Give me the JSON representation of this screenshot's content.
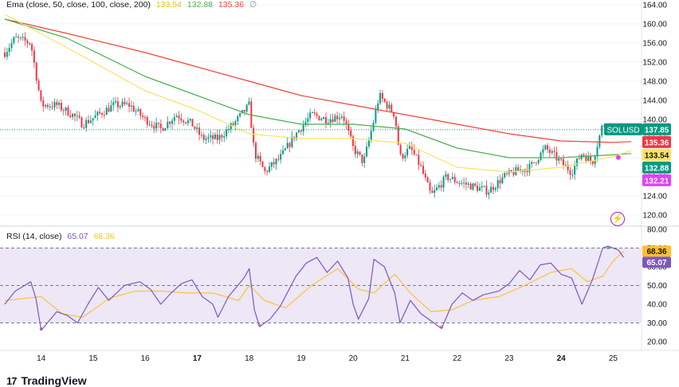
{
  "ema_legend": {
    "title": "Ema (close, 50, close, 100, close, 200)",
    "v1": "133.54",
    "v2": "132.88",
    "v3": "135.36",
    "v4": "∅"
  },
  "rsi_legend": {
    "title": "RSI (14, close)",
    "v1": "65.07",
    "v2": "68.36"
  },
  "footer": {
    "logo_text": "TradingView"
  },
  "colors": {
    "up": "#089981",
    "down": "#f23645",
    "ema50": "#f7e462",
    "ema100": "#4caf50",
    "ema200": "#f44336",
    "rsi": "#7e57c2",
    "rsi_ma": "#fbc02d",
    "rsi_band": "#ede7f6"
  },
  "chart_data": [
    {
      "type": "candlestick",
      "symbol_label": "SOLUSD",
      "y_ticks": [
        "164.00",
        "160.00",
        "156.00",
        "152.00",
        "148.00",
        "144.00",
        "140.00",
        "136.00",
        "132.00",
        "128.00",
        "124.00",
        "120.00"
      ],
      "ylim": [
        118,
        165
      ],
      "x_ticks": [
        "14",
        "15",
        "16",
        "17",
        "18",
        "19",
        "20",
        "21",
        "22",
        "23",
        "24",
        "25"
      ],
      "x_range": [
        13.3,
        25.5
      ],
      "price_labels": [
        {
          "text": "137.85",
          "value": 137.85,
          "color": "#089981",
          "tag": "SOLUSD"
        },
        {
          "text": "135.36",
          "value": 135.36,
          "color": "#f23645",
          "tag": ""
        },
        {
          "text": "133.54",
          "value": 133.54,
          "color": "#f7e462",
          "tag": ""
        },
        {
          "text": "132.88",
          "value": 132.88,
          "color": "#089981",
          "tag": ""
        },
        {
          "text": "132.21",
          "value": 132.21,
          "color": "#e040fb",
          "tag": ""
        }
      ],
      "last_price": 137.85,
      "close_path": [
        [
          13.3,
          154
        ],
        [
          13.5,
          157
        ],
        [
          13.8,
          156
        ],
        [
          14.0,
          143
        ],
        [
          14.3,
          143
        ],
        [
          14.6,
          141
        ],
        [
          14.8,
          139
        ],
        [
          15.1,
          141
        ],
        [
          15.4,
          143
        ],
        [
          15.7,
          143
        ],
        [
          16.0,
          140
        ],
        [
          16.3,
          138
        ],
        [
          16.6,
          141
        ],
        [
          16.9,
          139
        ],
        [
          17.1,
          136
        ],
        [
          17.4,
          136
        ],
        [
          17.7,
          139
        ],
        [
          18.0,
          143
        ],
        [
          18.1,
          133
        ],
        [
          18.3,
          129
        ],
        [
          18.6,
          132
        ],
        [
          18.9,
          137
        ],
        [
          19.2,
          141
        ],
        [
          19.5,
          140
        ],
        [
          19.8,
          141
        ],
        [
          20.0,
          134
        ],
        [
          20.2,
          131
        ],
        [
          20.4,
          140
        ],
        [
          20.5,
          145
        ],
        [
          20.8,
          141
        ],
        [
          20.9,
          132
        ],
        [
          21.1,
          134
        ],
        [
          21.3,
          130
        ],
        [
          21.5,
          124
        ],
        [
          21.8,
          128
        ],
        [
          22.0,
          127
        ],
        [
          22.3,
          126
        ],
        [
          22.6,
          125
        ],
        [
          22.9,
          128
        ],
        [
          23.1,
          129
        ],
        [
          23.4,
          130
        ],
        [
          23.7,
          134
        ],
        [
          24.0,
          131
        ],
        [
          24.2,
          129
        ],
        [
          24.4,
          133
        ],
        [
          24.6,
          131
        ],
        [
          24.8,
          139
        ],
        [
          24.9,
          139
        ],
        [
          25.0,
          137.85
        ]
      ],
      "ema50": [
        [
          13.3,
          162
        ],
        [
          14.5,
          155
        ],
        [
          16,
          146
        ],
        [
          17,
          142
        ],
        [
          18,
          137
        ],
        [
          19,
          136
        ],
        [
          20,
          136
        ],
        [
          21,
          135
        ],
        [
          22,
          130
        ],
        [
          23,
          129
        ],
        [
          24,
          130
        ],
        [
          25,
          132.21
        ],
        [
          25.35,
          133.54
        ]
      ],
      "ema100": [
        [
          13.3,
          161
        ],
        [
          14.5,
          157
        ],
        [
          16,
          149
        ],
        [
          17,
          145
        ],
        [
          18,
          141
        ],
        [
          19,
          139
        ],
        [
          20,
          139
        ],
        [
          21,
          138
        ],
        [
          22,
          134
        ],
        [
          23,
          132
        ],
        [
          24,
          132
        ],
        [
          25,
          132.6
        ],
        [
          25.35,
          132.88
        ]
      ],
      "ema200": [
        [
          13.3,
          161
        ],
        [
          14.5,
          158
        ],
        [
          16,
          154
        ],
        [
          17,
          151
        ],
        [
          18,
          148
        ],
        [
          19,
          145
        ],
        [
          20,
          143
        ],
        [
          21,
          141
        ],
        [
          22,
          139
        ],
        [
          23,
          137
        ],
        [
          24,
          135.5
        ],
        [
          25,
          135.2
        ],
        [
          25.35,
          135.36
        ]
      ]
    },
    {
      "type": "line",
      "name": "RSI",
      "y_ticks": [
        "80.00",
        "70.00",
        "60.00",
        "50.00",
        "40.00",
        "30.00",
        "20.00"
      ],
      "ylim": [
        18,
        81
      ],
      "bands": [
        70,
        50,
        30
      ],
      "price_labels": [
        {
          "text": "68.36",
          "value": 68.36,
          "color": "#fbc02d"
        },
        {
          "text": "65.07",
          "value": 65.07,
          "color": "#7e57c2"
        }
      ],
      "rsi": [
        [
          13.3,
          40
        ],
        [
          13.5,
          47
        ],
        [
          13.8,
          52
        ],
        [
          13.9,
          43
        ],
        [
          14.0,
          26
        ],
        [
          14.3,
          36
        ],
        [
          14.5,
          34
        ],
        [
          14.7,
          30
        ],
        [
          14.9,
          40
        ],
        [
          15.1,
          49
        ],
        [
          15.3,
          42
        ],
        [
          15.6,
          50
        ],
        [
          15.9,
          52
        ],
        [
          16.1,
          48
        ],
        [
          16.3,
          40
        ],
        [
          16.5,
          46
        ],
        [
          16.7,
          51
        ],
        [
          16.9,
          53
        ],
        [
          17.1,
          44
        ],
        [
          17.3,
          40
        ],
        [
          17.4,
          33
        ],
        [
          17.6,
          44
        ],
        [
          17.9,
          54
        ],
        [
          18.0,
          59
        ],
        [
          18.1,
          37
        ],
        [
          18.2,
          28
        ],
        [
          18.4,
          32
        ],
        [
          18.6,
          39
        ],
        [
          18.9,
          55
        ],
        [
          19.1,
          62
        ],
        [
          19.3,
          65
        ],
        [
          19.5,
          57
        ],
        [
          19.7,
          63
        ],
        [
          19.9,
          54
        ],
        [
          20.0,
          40
        ],
        [
          20.1,
          32
        ],
        [
          20.3,
          43
        ],
        [
          20.4,
          64
        ],
        [
          20.6,
          60
        ],
        [
          20.8,
          46
        ],
        [
          20.9,
          30
        ],
        [
          21.1,
          42
        ],
        [
          21.3,
          35
        ],
        [
          21.5,
          31
        ],
        [
          21.7,
          27
        ],
        [
          21.9,
          40
        ],
        [
          22.1,
          46
        ],
        [
          22.3,
          42
        ],
        [
          22.5,
          45
        ],
        [
          22.8,
          47
        ],
        [
          23.0,
          51
        ],
        [
          23.2,
          58
        ],
        [
          23.4,
          53
        ],
        [
          23.6,
          61
        ],
        [
          23.8,
          62
        ],
        [
          24.0,
          56
        ],
        [
          24.2,
          54
        ],
        [
          24.4,
          40
        ],
        [
          24.6,
          53
        ],
        [
          24.8,
          70
        ],
        [
          24.9,
          71
        ],
        [
          25.1,
          69
        ],
        [
          25.2,
          65.07
        ]
      ],
      "rsi_ma": [
        [
          13.3,
          42
        ],
        [
          14.0,
          44
        ],
        [
          14.4,
          35
        ],
        [
          14.8,
          33
        ],
        [
          15.3,
          43
        ],
        [
          15.8,
          47
        ],
        [
          16.3,
          47
        ],
        [
          16.8,
          46
        ],
        [
          17.3,
          46
        ],
        [
          17.8,
          42
        ],
        [
          18.0,
          50
        ],
        [
          18.3,
          42
        ],
        [
          18.7,
          38
        ],
        [
          19.2,
          50
        ],
        [
          19.7,
          59
        ],
        [
          20.1,
          48
        ],
        [
          20.4,
          46
        ],
        [
          20.8,
          56
        ],
        [
          21.1,
          46
        ],
        [
          21.5,
          36
        ],
        [
          21.9,
          37
        ],
        [
          22.3,
          42
        ],
        [
          22.8,
          44
        ],
        [
          23.3,
          50
        ],
        [
          23.8,
          57
        ],
        [
          24.2,
          59
        ],
        [
          24.5,
          52
        ],
        [
          24.8,
          55
        ],
        [
          25.0,
          63
        ],
        [
          25.2,
          68.36
        ]
      ]
    }
  ]
}
